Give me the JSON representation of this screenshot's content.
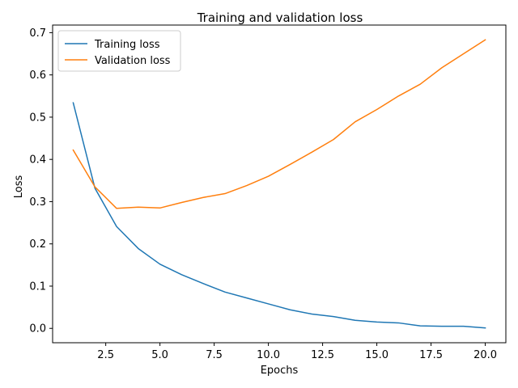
{
  "chart_data": {
    "type": "line",
    "title": "Training and validation loss",
    "xlabel": "Epochs",
    "ylabel": "Loss",
    "xlim": [
      0.05,
      20.95
    ],
    "ylim": [
      -0.034,
      0.718
    ],
    "xticks": [
      2.5,
      5.0,
      7.5,
      10.0,
      12.5,
      15.0,
      17.5,
      20.0
    ],
    "xtick_labels": [
      "2.5",
      "5.0",
      "7.5",
      "10.0",
      "12.5",
      "15.0",
      "17.5",
      "20.0"
    ],
    "yticks": [
      0.0,
      0.1,
      0.2,
      0.3,
      0.4,
      0.5,
      0.6,
      0.7
    ],
    "ytick_labels": [
      "0.0",
      "0.1",
      "0.2",
      "0.3",
      "0.4",
      "0.5",
      "0.6",
      "0.7"
    ],
    "grid": false,
    "legend_position": "top-left",
    "x": [
      1,
      2,
      3,
      4,
      5,
      6,
      7,
      8,
      9,
      10,
      11,
      12,
      13,
      14,
      15,
      16,
      17,
      18,
      19,
      20
    ],
    "series": [
      {
        "name": "Training loss",
        "color": "#1f77b4",
        "values": [
          0.534,
          0.332,
          0.241,
          0.189,
          0.152,
          0.127,
          0.106,
          0.086,
          0.072,
          0.058,
          0.044,
          0.034,
          0.028,
          0.019,
          0.015,
          0.013,
          0.006,
          0.005,
          0.005,
          0.001
        ]
      },
      {
        "name": "Validation loss",
        "color": "#ff7f0e",
        "values": [
          0.422,
          0.335,
          0.284,
          0.287,
          0.285,
          0.298,
          0.31,
          0.319,
          0.338,
          0.36,
          0.388,
          0.417,
          0.447,
          0.489,
          0.518,
          0.55,
          0.578,
          0.617,
          0.65,
          0.683
        ]
      }
    ]
  }
}
